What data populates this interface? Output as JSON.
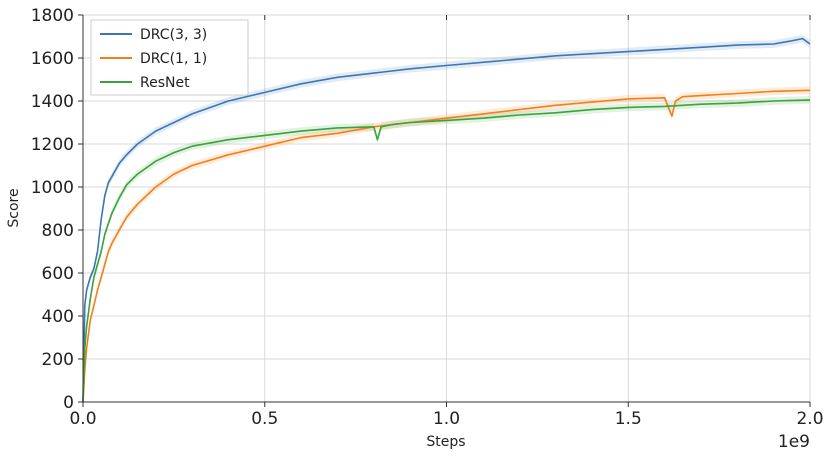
{
  "chart_data": {
    "type": "line",
    "title": "",
    "xlabel": "Steps",
    "ylabel": "Score",
    "x_scale_label": "1e9",
    "xlim": [
      0,
      2.0
    ],
    "ylim": [
      0,
      1800
    ],
    "x_ticks": [
      "0.0",
      "0.5",
      "1.0",
      "1.5",
      "2.0"
    ],
    "x_tick_values": [
      0,
      0.5,
      1.0,
      1.5,
      2.0
    ],
    "y_ticks": [
      "0",
      "200",
      "400",
      "600",
      "800",
      "1000",
      "1200",
      "1400",
      "1600",
      "1800"
    ],
    "y_tick_values": [
      0,
      200,
      400,
      600,
      800,
      1000,
      1200,
      1400,
      1600,
      1800
    ],
    "grid": true,
    "legend_position": "top-left",
    "series": [
      {
        "name": "DRC(3, 3)",
        "color": "#3a78b5",
        "x": [
          0,
          0.005,
          0.01,
          0.02,
          0.03,
          0.04,
          0.05,
          0.06,
          0.07,
          0.08,
          0.1,
          0.12,
          0.15,
          0.2,
          0.25,
          0.3,
          0.4,
          0.5,
          0.6,
          0.7,
          0.8,
          0.9,
          1.0,
          1.1,
          1.2,
          1.3,
          1.4,
          1.5,
          1.6,
          1.7,
          1.8,
          1.9,
          1.95,
          1.98,
          2.0
        ],
        "values": [
          0,
          450,
          520,
          580,
          620,
          700,
          850,
          960,
          1020,
          1050,
          1110,
          1150,
          1200,
          1260,
          1300,
          1340,
          1400,
          1440,
          1480,
          1510,
          1530,
          1550,
          1565,
          1580,
          1595,
          1610,
          1620,
          1630,
          1640,
          1650,
          1660,
          1665,
          1680,
          1690,
          1665
        ]
      },
      {
        "name": "DRC(1, 1)",
        "color": "#f57f17",
        "x": [
          0,
          0.005,
          0.01,
          0.02,
          0.03,
          0.04,
          0.05,
          0.06,
          0.07,
          0.08,
          0.1,
          0.12,
          0.15,
          0.2,
          0.25,
          0.3,
          0.4,
          0.5,
          0.6,
          0.7,
          0.8,
          0.9,
          1.0,
          1.1,
          1.2,
          1.3,
          1.4,
          1.5,
          1.6,
          1.62,
          1.63,
          1.65,
          1.7,
          1.8,
          1.9,
          2.0
        ],
        "values": [
          0,
          150,
          250,
          380,
          450,
          520,
          580,
          640,
          700,
          740,
          800,
          860,
          920,
          1000,
          1060,
          1100,
          1150,
          1190,
          1230,
          1250,
          1280,
          1300,
          1320,
          1340,
          1360,
          1380,
          1395,
          1410,
          1415,
          1330,
          1400,
          1420,
          1425,
          1435,
          1445,
          1450
        ]
      },
      {
        "name": "ResNet",
        "color": "#3aa33a",
        "x": [
          0,
          0.005,
          0.01,
          0.02,
          0.03,
          0.04,
          0.05,
          0.06,
          0.07,
          0.08,
          0.1,
          0.12,
          0.15,
          0.2,
          0.25,
          0.3,
          0.4,
          0.5,
          0.6,
          0.7,
          0.8,
          0.81,
          0.82,
          0.85,
          0.9,
          1.0,
          1.1,
          1.2,
          1.3,
          1.4,
          1.5,
          1.6,
          1.7,
          1.8,
          1.9,
          2.0
        ],
        "values": [
          0,
          250,
          350,
          480,
          580,
          640,
          700,
          780,
          830,
          880,
          950,
          1010,
          1060,
          1120,
          1160,
          1190,
          1220,
          1240,
          1260,
          1275,
          1280,
          1220,
          1280,
          1290,
          1300,
          1310,
          1320,
          1335,
          1345,
          1360,
          1370,
          1375,
          1385,
          1390,
          1400,
          1405
        ]
      }
    ]
  }
}
